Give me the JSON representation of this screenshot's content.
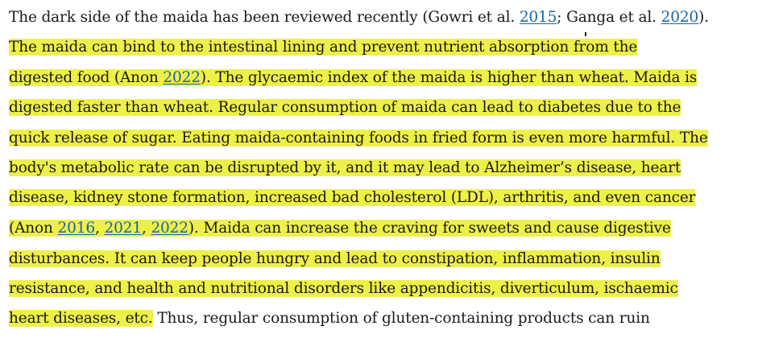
{
  "paragraph": {
    "l1": {
      "a": "The dark side of the maida has been reviewed recently (Gowri et al. ",
      "link1": "2015",
      "b": "; Ganga et al. ",
      "link2": "2020",
      "c": ")."
    },
    "l2": {
      "a": "The maida can bind to the intestinal lining and prevent nutrient absorption from the"
    },
    "l3": {
      "a": "digested food (Anon ",
      "link1": "2022",
      "b": "). The glycaemic index of the maida is higher than wheat. Maida is"
    },
    "l4": {
      "a": "digested faster than wheat. Regular consumption of maida can lead to diabetes due to the"
    },
    "l5": {
      "a": "quick release of sugar. Eating maida-containing foods in fried form is even more harmful. The"
    },
    "l6": {
      "a": "body's metabolic rate can be disrupted by it, and it may lead to Alzheimer’s disease, heart"
    },
    "l7": {
      "a": "disease, kidney stone formation, increased bad cholesterol (LDL), arthritis, and even cancer"
    },
    "l8": {
      "a": "(Anon ",
      "link1": "2016",
      "b": ", ",
      "link2": "2021",
      "c": ", ",
      "link3": "2022",
      "d": "). Maida can increase the craving for sweets and cause digestive"
    },
    "l9": {
      "a": "disturbances. It can keep people hungry and lead to constipation, inflammation, insulin"
    },
    "l10": {
      "a": "resistance, and health and nutritional disorders like appendicitis, diverticulum, ischaemic"
    },
    "l11": {
      "a": "heart diseases, etc.",
      "b": " Thus, regular consumption of gluten-containing products can ruin"
    }
  },
  "colors": {
    "highlight": "#eef04a",
    "link": "#1565a8",
    "text": "#1a1a1a"
  }
}
